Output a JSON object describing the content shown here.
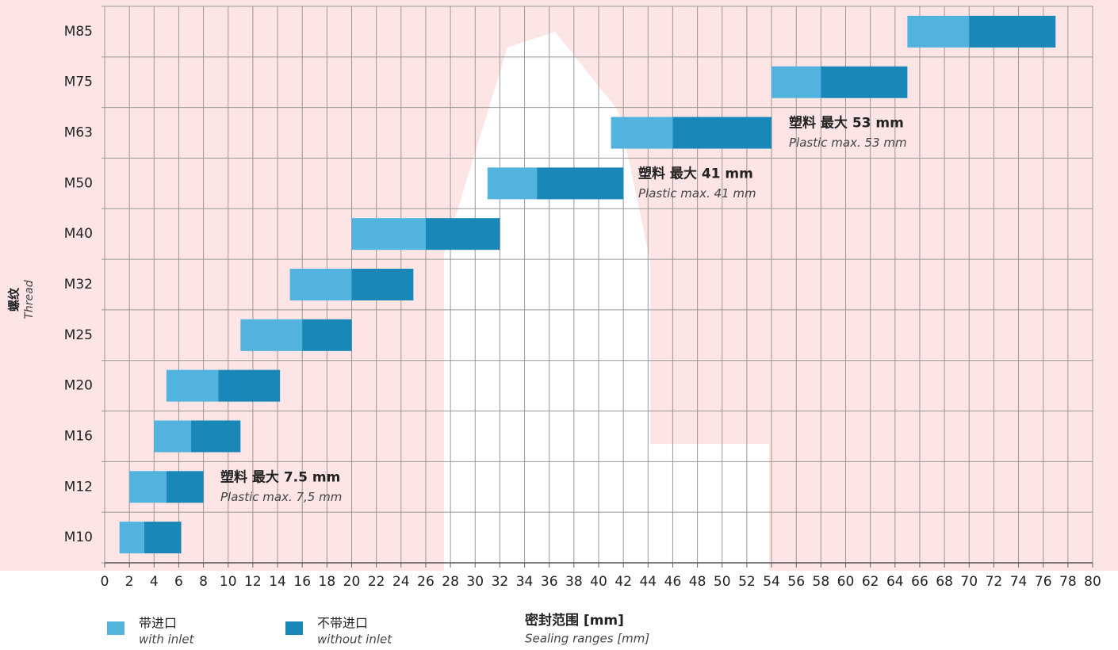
{
  "chart_data": {
    "type": "range-bar",
    "y_label": "螺纹",
    "y_label_en": "Thread",
    "x_label": "密封范围 [mm]",
    "x_label_en": "Sealing ranges [mm]",
    "categories": [
      "M10",
      "M12",
      "M16",
      "M20",
      "M25",
      "M32",
      "M40",
      "M50",
      "M63",
      "M75",
      "M85"
    ],
    "series": [
      {
        "name": "带进口",
        "name_en": "with inlet",
        "color": "#52b4de",
        "values": [
          [
            1.2,
            3.2
          ],
          [
            2,
            5
          ],
          [
            4,
            7
          ],
          [
            5,
            9.2
          ],
          [
            11,
            16
          ],
          [
            15,
            20
          ],
          [
            20,
            26
          ],
          [
            31,
            35
          ],
          [
            41,
            46
          ],
          [
            54,
            58
          ],
          [
            65,
            70
          ]
        ]
      },
      {
        "name": "不带进口",
        "name_en": "without inlet",
        "color": "#1a87b9",
        "values": [
          [
            3.2,
            6.2
          ],
          [
            5,
            8
          ],
          [
            7,
            11
          ],
          [
            9.2,
            14.2
          ],
          [
            16,
            20
          ],
          [
            20,
            25
          ],
          [
            26,
            32
          ],
          [
            35,
            42
          ],
          [
            46,
            54
          ],
          [
            58,
            65
          ],
          [
            70,
            77
          ]
        ]
      }
    ],
    "annotations": [
      {
        "category": 1,
        "text": "塑料 最大 7.5 mm",
        "text_en": "Plastic max. 7,5 mm"
      },
      {
        "category": 7,
        "text": "塑料 最大 41 mm",
        "text_en": "Plastic max. 41 mm"
      },
      {
        "category": 8,
        "text": "塑料 最大 53 mm",
        "text_en": "Plastic max. 53 mm"
      }
    ],
    "xlim": [
      0,
      80
    ],
    "xticks": [
      0,
      2,
      4,
      6,
      8,
      10,
      12,
      14,
      16,
      18,
      20,
      22,
      24,
      26,
      28,
      30,
      32,
      34,
      36,
      38,
      40,
      42,
      44,
      46,
      48,
      50,
      52,
      54,
      56,
      58,
      60,
      62,
      64,
      66,
      68,
      70,
      72,
      74,
      76,
      78,
      80
    ],
    "grid": true
  }
}
